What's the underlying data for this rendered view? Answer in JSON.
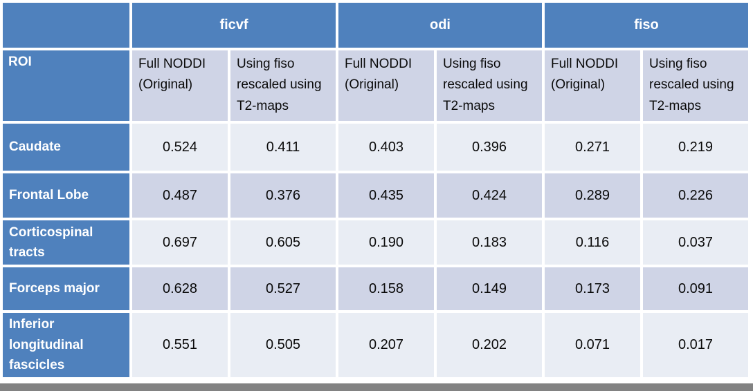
{
  "colors": {
    "header_blue": "#4F81BD",
    "band_dark": "#CFD4E6",
    "band_light": "#E9EDF4",
    "border_white": "#FFFFFF",
    "bottom_bar_gray": "#828282",
    "header_text": "#FFFFFF",
    "value_text": "#0A0A0A"
  },
  "table": {
    "roi_header": "ROI",
    "groups": [
      {
        "label": "ficvf",
        "subcolumns": [
          "Full NODDI (Original)",
          "Using fiso rescaled using T2-maps"
        ]
      },
      {
        "label": "odi",
        "subcolumns": [
          "Full NODDI (Original)",
          "Using fiso rescaled using T2-maps"
        ]
      },
      {
        "label": "fiso",
        "subcolumns": [
          "Full NODDI (Original)",
          "Using fiso rescaled using T2-maps"
        ]
      }
    ],
    "rows": [
      {
        "roi": "Caudate",
        "values": [
          "0.524",
          "0.411",
          "0.403",
          "0.396",
          "0.271",
          "0.219"
        ]
      },
      {
        "roi": "Frontal Lobe",
        "values": [
          "0.487",
          "0.376",
          "0.435",
          "0.424",
          "0.289",
          "0.226"
        ]
      },
      {
        "roi": "Corticospinal tracts",
        "values": [
          "0.697",
          "0.605",
          "0.190",
          "0.183",
          "0.116",
          "0.037"
        ]
      },
      {
        "roi": "Forceps major",
        "values": [
          "0.628",
          "0.527",
          "0.158",
          "0.149",
          "0.173",
          "0.091"
        ]
      },
      {
        "roi": "Inferior longitudinal fascicles",
        "values": [
          "0.551",
          "0.505",
          "0.207",
          "0.202",
          "0.071",
          "0.017"
        ]
      }
    ]
  },
  "chart_data": {
    "type": "table",
    "column_groups": [
      "ficvf",
      "odi",
      "fiso"
    ],
    "columns": [
      "ROI",
      "ficvf - Full NODDI (Original)",
      "ficvf - Using fiso rescaled using T2-maps",
      "odi - Full NODDI (Original)",
      "odi - Using fiso rescaled using T2-maps",
      "fiso - Full NODDI (Original)",
      "fiso - Using fiso rescaled using T2-maps"
    ],
    "rows": [
      [
        "Caudate",
        0.524,
        0.411,
        0.403,
        0.396,
        0.271,
        0.219
      ],
      [
        "Frontal Lobe",
        0.487,
        0.376,
        0.435,
        0.424,
        0.289,
        0.226
      ],
      [
        "Corticospinal tracts",
        0.697,
        0.605,
        0.19,
        0.183,
        0.116,
        0.037
      ],
      [
        "Forceps major",
        0.628,
        0.527,
        0.158,
        0.149,
        0.173,
        0.091
      ],
      [
        "Inferior longitudinal fascicles",
        0.551,
        0.505,
        0.207,
        0.202,
        0.071,
        0.017
      ]
    ]
  }
}
